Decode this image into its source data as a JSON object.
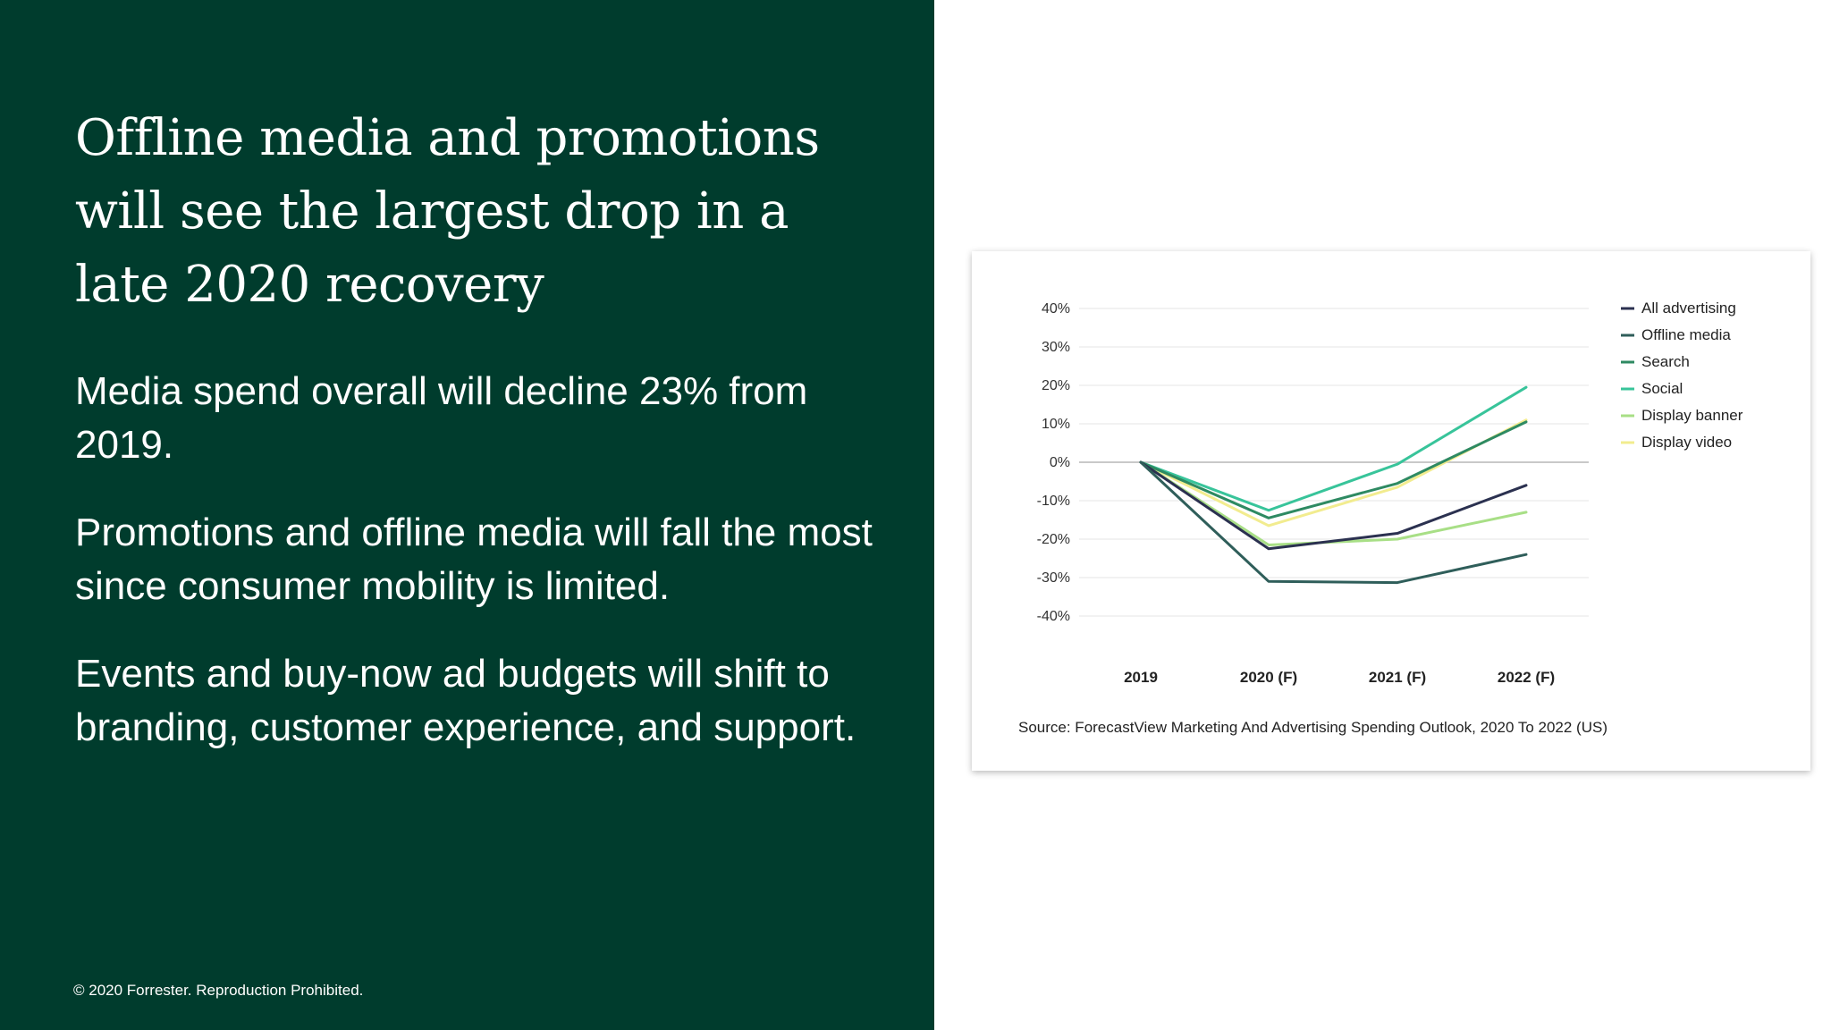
{
  "headline": "Offline media and promotions will see the largest drop in a late 2020 recovery",
  "bullets": [
    "Media spend overall will decline 23% from 2019.",
    "Promotions and offline media will fall the most since consumer mobility is limited.",
    "Events and buy-now ad budgets will shift to branding, customer experience, and support."
  ],
  "footer": {
    "copyright": "© 2020 Forrester. Reproduction Prohibited."
  },
  "colors": {
    "panel_background": "#003c2d",
    "text_on_panel": "#ffffff"
  },
  "chart_data": {
    "type": "line",
    "x": [
      "2019",
      "2020 (F)",
      "2021 (F)",
      "2022 (F)"
    ],
    "y_ticks": [
      "40%",
      "30%",
      "20%",
      "10%",
      "0%",
      "-10%",
      "-20%",
      "-30%",
      "-40%"
    ],
    "ylim": [
      -40,
      40
    ],
    "grid": true,
    "legend_position": "right",
    "series": [
      {
        "name": "All advertising",
        "color": "#2b3150",
        "values": [
          0,
          -22.5,
          -18.5,
          -6
        ]
      },
      {
        "name": "Offline media",
        "color": "#2f5e5a",
        "values": [
          0,
          -31,
          -31.3,
          -24
        ]
      },
      {
        "name": "Search",
        "color": "#2e8a62",
        "values": [
          0,
          -14.5,
          -5.5,
          10.5
        ]
      },
      {
        "name": "Social",
        "color": "#38c49a",
        "values": [
          0,
          -12.5,
          -0.5,
          19.5
        ]
      },
      {
        "name": "Display banner",
        "color": "#a8df86",
        "values": [
          0,
          -21.5,
          -20,
          -13
        ]
      },
      {
        "name": "Display video",
        "color": "#f2ec8f",
        "values": [
          0,
          -16.5,
          -6.5,
          11
        ]
      }
    ],
    "source": "Source: ForecastView Marketing And Advertising Spending Outlook, 2020 To 2022 (US)"
  }
}
